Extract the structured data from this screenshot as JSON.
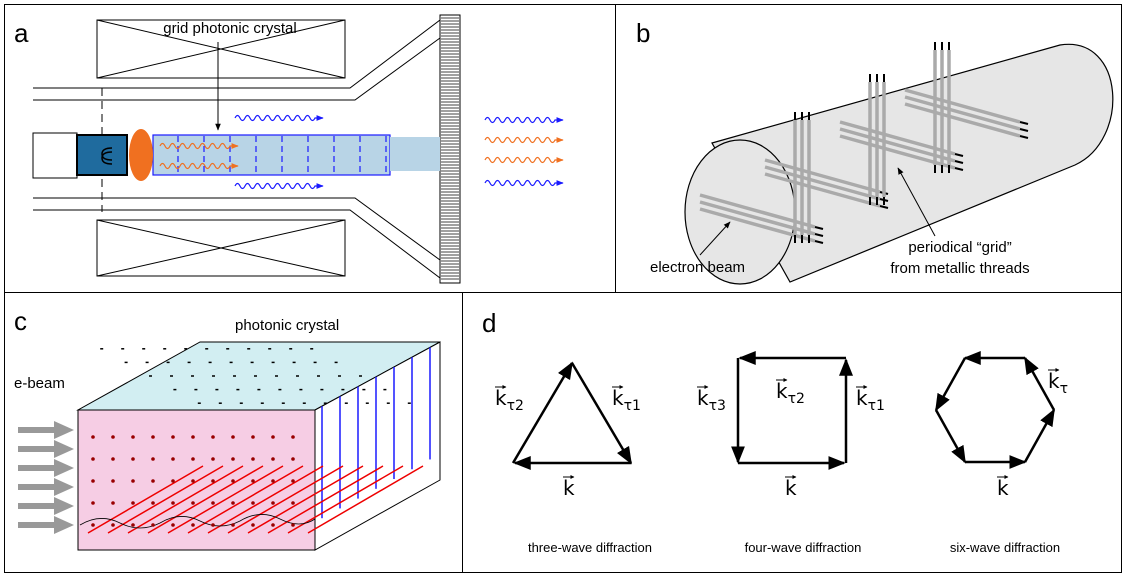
{
  "panel_a": {
    "letter": "a",
    "label": "grid photonic crystal"
  },
  "panel_b": {
    "letter": "b",
    "beam_label": "electron beam",
    "grid_label": [
      "periodical “grid”",
      "from metallic threads"
    ]
  },
  "panel_c": {
    "letter": "c",
    "crystal_label": "photonic crystal",
    "beam_label": "e-beam"
  },
  "panel_d": {
    "letter": "d",
    "diagrams": [
      {
        "caption": "three-wave diffraction",
        "vectors": [
          {
            "base": "k",
            "sub": "τ2"
          },
          {
            "base": "k",
            "sub": "τ1"
          },
          {
            "base": "k"
          }
        ]
      },
      {
        "caption": "four-wave diffraction",
        "vectors": [
          {
            "base": "k",
            "sub": "τ3"
          },
          {
            "base": "k",
            "sub": "τ2"
          },
          {
            "base": "k",
            "sub": "τ1"
          },
          {
            "base": "k"
          }
        ]
      },
      {
        "caption": "six-wave diffraction",
        "vectors": [
          {
            "base": "k",
            "sub": "τ"
          },
          {
            "base": "k"
          }
        ]
      }
    ]
  }
}
